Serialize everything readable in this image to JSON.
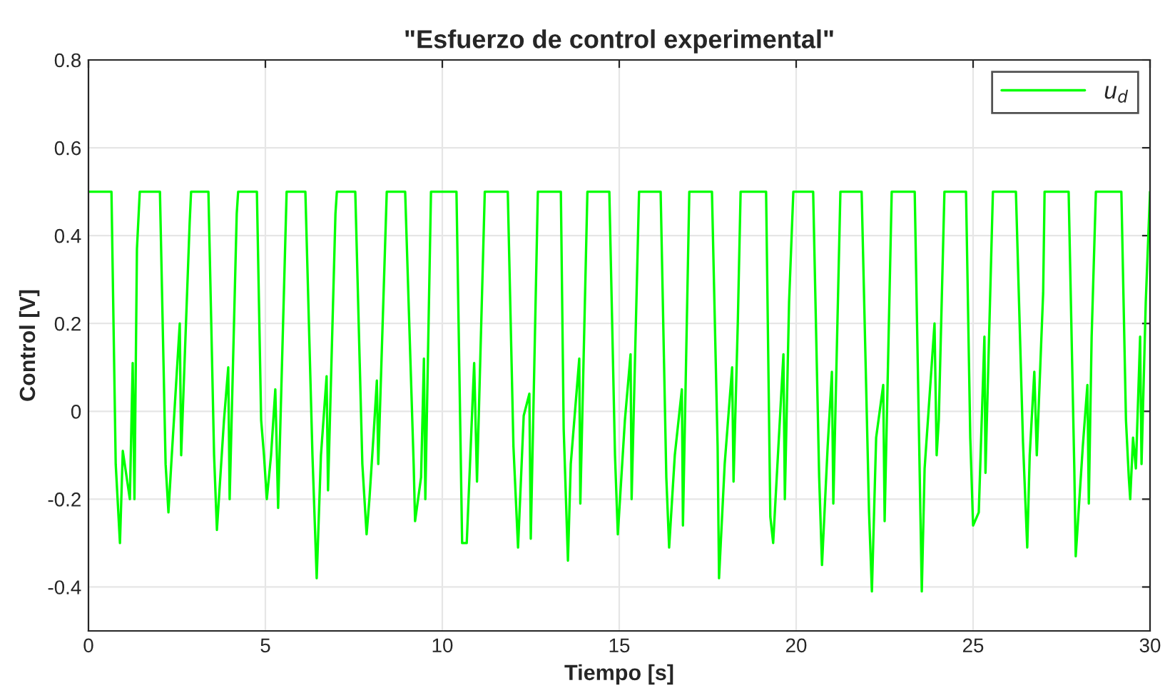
{
  "chart_data": {
    "type": "line",
    "title": "\"Esfuerzo de control experimental\"",
    "xlabel": "Tiempo [s]",
    "ylabel": "Control [V]",
    "xlim": [
      0,
      30
    ],
    "ylim": [
      -0.5,
      0.8
    ],
    "xticks": [
      0,
      5,
      10,
      15,
      20,
      25,
      30
    ],
    "yticks": [
      -0.4,
      -0.2,
      0,
      0.2,
      0.4,
      0.6,
      0.8
    ],
    "grid": true,
    "legend": "top right",
    "line_style": "solid",
    "marker": "none",
    "series": [
      {
        "name": "u$_{d}$",
        "color": "#00ff00",
        "x": [
          0,
          0.65,
          0.77,
          0.89,
          0.97,
          1.17,
          1.25,
          1.3,
          1.37,
          1.45,
          2.02,
          2.18,
          2.26,
          2.34,
          2.58,
          2.62,
          2.86,
          2.9,
          3.39,
          3.55,
          3.63,
          3.83,
          3.95,
          3.99,
          4.19,
          4.23,
          4.76,
          4.88,
          4.96,
          5.04,
          5.16,
          5.28,
          5.36,
          5.6,
          6.13,
          6.33,
          6.45,
          6.57,
          6.73,
          6.77,
          6.98,
          7.02,
          7.54,
          7.74,
          7.86,
          7.94,
          8.06,
          8.15,
          8.19,
          8.43,
          8.95,
          9.19,
          9.23,
          9.4,
          9.48,
          9.52,
          9.68,
          10.4,
          10.56,
          10.69,
          10.9,
          10.98,
          11.2,
          11.85,
          12.01,
          12.14,
          12.3,
          12.46,
          12.5,
          12.7,
          13.35,
          13.43,
          13.55,
          13.63,
          13.87,
          13.9,
          14.1,
          14.72,
          14.88,
          14.96,
          15.16,
          15.32,
          15.35,
          15.56,
          16.17,
          16.33,
          16.41,
          16.57,
          16.77,
          16.8,
          16.98,
          17.62,
          17.78,
          17.82,
          17.98,
          18.19,
          18.23,
          18.35,
          18.43,
          19.15,
          19.27,
          19.35,
          19.64,
          19.68,
          19.8,
          19.92,
          20.48,
          20.65,
          20.73,
          20.89,
          21.01,
          21.05,
          21.25,
          21.85,
          22.06,
          22.14,
          22.26,
          22.46,
          22.5,
          22.7,
          23.35,
          23.55,
          23.63,
          23.91,
          23.97,
          24.03,
          24.19,
          24.8,
          24.92,
          25.0,
          25.16,
          25.32,
          25.35,
          25.56,
          26.21,
          26.41,
          26.53,
          26.6,
          26.73,
          26.8,
          26.98,
          27.02,
          27.7,
          27.86,
          27.9,
          28.1,
          28.23,
          28.27,
          28.35,
          28.47,
          29.19,
          29.32,
          29.4,
          29.44,
          29.52,
          29.6,
          29.72,
          29.76,
          29.88,
          30.0
        ],
        "values": [
          0.5,
          0.5,
          -0.12,
          -0.3,
          -0.09,
          -0.2,
          0.11,
          -0.2,
          0.37,
          0.5,
          0.5,
          -0.12,
          -0.23,
          -0.12,
          0.2,
          -0.1,
          0.43,
          0.5,
          0.5,
          -0.1,
          -0.27,
          -0.02,
          0.1,
          -0.2,
          0.45,
          0.5,
          0.5,
          -0.02,
          -0.1,
          -0.2,
          -0.1,
          0.05,
          -0.22,
          0.5,
          0.5,
          -0.1,
          -0.38,
          -0.1,
          0.08,
          -0.18,
          0.45,
          0.5,
          0.5,
          -0.12,
          -0.28,
          -0.2,
          -0.05,
          0.07,
          -0.12,
          0.5,
          0.5,
          -0.12,
          -0.25,
          -0.15,
          0.12,
          -0.2,
          0.5,
          0.5,
          -0.3,
          -0.3,
          0.11,
          -0.16,
          0.5,
          0.5,
          -0.08,
          -0.31,
          -0.01,
          0.04,
          -0.29,
          0.5,
          0.5,
          -0.04,
          -0.34,
          -0.12,
          0.12,
          -0.21,
          0.5,
          0.5,
          -0.1,
          -0.28,
          -0.02,
          0.13,
          -0.2,
          0.5,
          0.5,
          -0.15,
          -0.31,
          -0.1,
          0.05,
          -0.26,
          0.5,
          0.5,
          -0.08,
          -0.38,
          -0.12,
          0.1,
          -0.16,
          0.2,
          0.5,
          0.5,
          -0.24,
          -0.3,
          0.13,
          -0.2,
          0.25,
          0.5,
          0.5,
          -0.15,
          -0.35,
          -0.08,
          0.09,
          -0.21,
          0.5,
          0.5,
          -0.23,
          -0.41,
          -0.06,
          0.06,
          -0.25,
          0.5,
          0.5,
          -0.41,
          -0.13,
          0.2,
          -0.1,
          -0.02,
          0.5,
          0.5,
          -0.06,
          -0.26,
          -0.23,
          0.17,
          -0.14,
          0.5,
          0.5,
          -0.07,
          -0.31,
          -0.1,
          0.09,
          -0.1,
          0.27,
          0.5,
          0.5,
          -0.13,
          -0.33,
          -0.08,
          0.06,
          -0.21,
          0.17,
          0.5,
          0.5,
          -0.02,
          -0.15,
          -0.2,
          -0.06,
          -0.13,
          0.17,
          -0.12,
          0.25,
          0.5
        ]
      }
    ]
  }
}
